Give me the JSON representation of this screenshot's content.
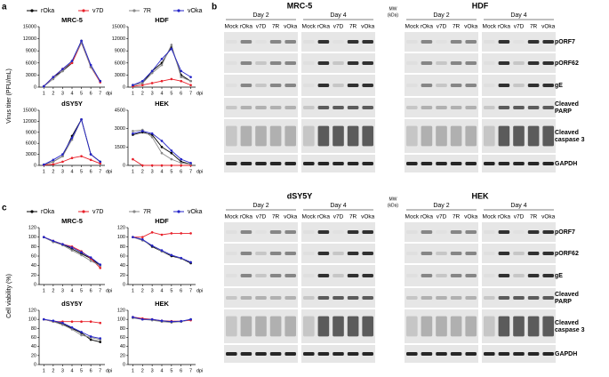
{
  "panel_labels": [
    "a",
    "b",
    "c"
  ],
  "chart_data": [
    {
      "type": "line",
      "title": "MRC-5",
      "ylabel": "Virus titer (PFU/mL)",
      "xlabel": "dpi",
      "x": [
        1,
        2,
        3,
        4,
        5,
        6,
        7
      ],
      "xlim": [
        0.5,
        7.5
      ],
      "xticks": [
        1,
        2,
        3,
        4,
        5,
        6,
        7
      ],
      "ylim": [
        0,
        15000
      ],
      "yticks": [
        0,
        3000,
        6000,
        9000,
        12000,
        15000
      ],
      "series": [
        {
          "name": "rOka",
          "color": "#000000",
          "values": [
            200,
            2500,
            4000,
            6000,
            11500,
            5000,
            1500
          ]
        },
        {
          "name": "v7D",
          "color": "#e8202a",
          "values": [
            200,
            2500,
            4500,
            6000,
            11000,
            5000,
            1200
          ]
        },
        {
          "name": "7R",
          "color": "#888888",
          "values": [
            200,
            2000,
            4000,
            6500,
            11000,
            5000,
            1500
          ]
        },
        {
          "name": "vOka",
          "color": "#2323c8",
          "values": [
            200,
            2500,
            4500,
            6500,
            11500,
            5500,
            1500
          ]
        }
      ]
    },
    {
      "type": "line",
      "title": "HDF",
      "xlabel": "dpi",
      "x": [
        1,
        2,
        3,
        4,
        5,
        6,
        7
      ],
      "xlim": [
        0.5,
        7.5
      ],
      "xticks": [
        1,
        2,
        3,
        4,
        5,
        6,
        7
      ],
      "ylim": [
        0,
        15000
      ],
      "yticks": [
        0,
        3000,
        6000,
        9000,
        12000,
        15000
      ],
      "series": [
        {
          "name": "rOka",
          "color": "#000000",
          "values": [
            500,
            1000,
            4000,
            6000,
            10000,
            3000,
            1500
          ]
        },
        {
          "name": "v7D",
          "color": "#e8202a",
          "values": [
            200,
            500,
            1000,
            1500,
            2000,
            1500,
            500
          ]
        },
        {
          "name": "7R",
          "color": "#888888",
          "values": [
            500,
            1000,
            3500,
            5500,
            10500,
            2500,
            1500
          ]
        },
        {
          "name": "vOka",
          "color": "#2323c8",
          "values": [
            500,
            1500,
            4000,
            7000,
            9500,
            4000,
            2500
          ]
        }
      ]
    },
    {
      "type": "line",
      "title": "dSY5Y",
      "xlabel": "dpi",
      "x": [
        1,
        2,
        3,
        4,
        5,
        6,
        7
      ],
      "xlim": [
        0.5,
        7.5
      ],
      "xticks": [
        1,
        2,
        3,
        4,
        5,
        6,
        7
      ],
      "ylim": [
        0,
        15000
      ],
      "yticks": [
        0,
        3000,
        6000,
        9000,
        12000,
        15000
      ],
      "series": [
        {
          "name": "rOka",
          "color": "#000000",
          "values": [
            200,
            1000,
            2500,
            8000,
            12500,
            3000,
            1000
          ]
        },
        {
          "name": "v7D",
          "color": "#e8202a",
          "values": [
            100,
            300,
            1000,
            2000,
            2500,
            1500,
            500
          ]
        },
        {
          "name": "7R",
          "color": "#888888",
          "values": [
            200,
            1000,
            2500,
            7000,
            12500,
            3000,
            1000
          ]
        },
        {
          "name": "vOka",
          "color": "#2323c8",
          "values": [
            200,
            1500,
            3000,
            7500,
            12500,
            3000,
            1000
          ]
        }
      ]
    },
    {
      "type": "line",
      "title": "HEK",
      "xlabel": "dpi",
      "x": [
        1,
        2,
        3,
        4,
        5,
        6,
        7
      ],
      "xlim": [
        0.5,
        7.5
      ],
      "xticks": [
        1,
        2,
        3,
        4,
        5,
        6,
        7
      ],
      "ylim": [
        0,
        4500
      ],
      "yticks": [
        0,
        1500,
        3000,
        4500
      ],
      "series": [
        {
          "name": "rOka",
          "color": "#000000",
          "values": [
            2500,
            2700,
            2500,
            1500,
            1000,
            300,
            100
          ]
        },
        {
          "name": "v7D",
          "color": "#e8202a",
          "values": [
            500,
            0,
            0,
            0,
            0,
            0,
            0
          ]
        },
        {
          "name": "7R",
          "color": "#888888",
          "values": [
            2800,
            2900,
            2300,
            1000,
            500,
            200,
            100
          ]
        },
        {
          "name": "vOka",
          "color": "#2323c8",
          "values": [
            2600,
            2800,
            2600,
            2000,
            1200,
            500,
            200
          ]
        }
      ]
    },
    {
      "type": "line",
      "title": "MRC-5",
      "ylabel": "Cell viability (%)",
      "xlabel": "dpi",
      "x": [
        1,
        2,
        3,
        4,
        5,
        6,
        7
      ],
      "xlim": [
        0.5,
        7.5
      ],
      "xticks": [
        1,
        2,
        3,
        4,
        5,
        6,
        7
      ],
      "ylim": [
        0,
        120
      ],
      "yticks": [
        0,
        20,
        40,
        60,
        80,
        100,
        120
      ],
      "series": [
        {
          "name": "rOka",
          "color": "#000000",
          "values": [
            100,
            90,
            85,
            75,
            65,
            55,
            40
          ]
        },
        {
          "name": "v7D",
          "color": "#e8202a",
          "values": [
            100,
            92,
            85,
            80,
            70,
            55,
            35
          ]
        },
        {
          "name": "7R",
          "color": "#888888",
          "values": [
            100,
            90,
            83,
            72,
            62,
            50,
            40
          ]
        },
        {
          "name": "vOka",
          "color": "#2323c8",
          "values": [
            100,
            92,
            85,
            78,
            68,
            57,
            42
          ]
        }
      ]
    },
    {
      "type": "line",
      "title": "HDF",
      "xlabel": "dpi",
      "x": [
        1,
        2,
        3,
        4,
        5,
        6,
        7
      ],
      "xlim": [
        0.5,
        7.5
      ],
      "xticks": [
        1,
        2,
        3,
        4,
        5,
        6,
        7
      ],
      "ylim": [
        0,
        120
      ],
      "yticks": [
        0,
        20,
        40,
        60,
        80,
        100,
        120
      ],
      "series": [
        {
          "name": "rOka",
          "color": "#000000",
          "values": [
            100,
            95,
            80,
            70,
            60,
            55,
            45
          ]
        },
        {
          "name": "v7D",
          "color": "#e8202a",
          "values": [
            100,
            100,
            110,
            105,
            108,
            108,
            108
          ]
        },
        {
          "name": "7R",
          "color": "#888888",
          "values": [
            100,
            93,
            82,
            70,
            62,
            55,
            47
          ]
        },
        {
          "name": "vOka",
          "color": "#2323c8",
          "values": [
            100,
            95,
            82,
            72,
            62,
            56,
            47
          ]
        }
      ]
    },
    {
      "type": "line",
      "title": "dSY5Y",
      "xlabel": "dpi",
      "x": [
        1,
        2,
        3,
        4,
        5,
        6,
        7
      ],
      "xlim": [
        0.5,
        7.5
      ],
      "xticks": [
        1,
        2,
        3,
        4,
        5,
        6,
        7
      ],
      "ylim": [
        0,
        120
      ],
      "yticks": [
        0,
        20,
        40,
        60,
        80,
        100,
        120
      ],
      "series": [
        {
          "name": "rOka",
          "color": "#000000",
          "values": [
            100,
            95,
            90,
            80,
            70,
            55,
            50
          ]
        },
        {
          "name": "v7D",
          "color": "#e8202a",
          "values": [
            100,
            95,
            95,
            95,
            95,
            95,
            92
          ]
        },
        {
          "name": "7R",
          "color": "#888888",
          "values": [
            100,
            95,
            88,
            78,
            65,
            60,
            55
          ]
        },
        {
          "name": "vOka",
          "color": "#2323c8",
          "values": [
            100,
            97,
            92,
            82,
            72,
            62,
            58
          ]
        }
      ]
    },
    {
      "type": "line",
      "title": "HEK",
      "xlabel": "dpi",
      "x": [
        1,
        2,
        3,
        4,
        5,
        6,
        7
      ],
      "xlim": [
        0.5,
        7.5
      ],
      "xticks": [
        1,
        2,
        3,
        4,
        5,
        6,
        7
      ],
      "ylim": [
        0,
        120
      ],
      "yticks": [
        0,
        20,
        40,
        60,
        80,
        100,
        120
      ],
      "series": [
        {
          "name": "rOka",
          "color": "#000000",
          "values": [
            105,
            100,
            100,
            95,
            95,
            95,
            100
          ]
        },
        {
          "name": "v7D",
          "color": "#e8202a",
          "values": [
            105,
            102,
            100,
            97,
            96,
            96,
            98
          ]
        },
        {
          "name": "7R",
          "color": "#888888",
          "values": [
            103,
            100,
            98,
            95,
            93,
            95,
            100
          ]
        },
        {
          "name": "vOka",
          "color": "#2323c8",
          "values": [
            105,
            100,
            100,
            97,
            95,
            96,
            100
          ]
        }
      ]
    }
  ],
  "blots": [
    {
      "cells": [
        "MRC-5",
        "HDF"
      ],
      "days": [
        "Day 2",
        "Day 4"
      ],
      "lanes": [
        "Mock",
        "rOka",
        "v7D",
        "7R",
        "vOka"
      ],
      "mw": "MW",
      "mw_unit": "(kDa)",
      "rows": [
        [
          "pORF7"
        ],
        [
          "pORF62"
        ],
        [
          "gE"
        ],
        [
          "Cleaved",
          "PARP"
        ],
        [
          "Cleaved",
          "caspase 3"
        ],
        [
          "GAPDH"
        ]
      ]
    },
    {
      "cells": [
        "dSY5Y",
        "HEK"
      ],
      "days": [
        "Day 2",
        "Day 4"
      ],
      "lanes": [
        "Mock",
        "rOka",
        "v7D",
        "7R",
        "vOka"
      ],
      "mw": "MW",
      "mw_unit": "(kDa)",
      "rows": [
        [
          "pORF7"
        ],
        [
          "pORF62"
        ],
        [
          "gE"
        ],
        [
          "Cleaved",
          "PARP"
        ],
        [
          "Cleaved",
          "caspase 3"
        ],
        [
          "GAPDH"
        ]
      ]
    }
  ]
}
